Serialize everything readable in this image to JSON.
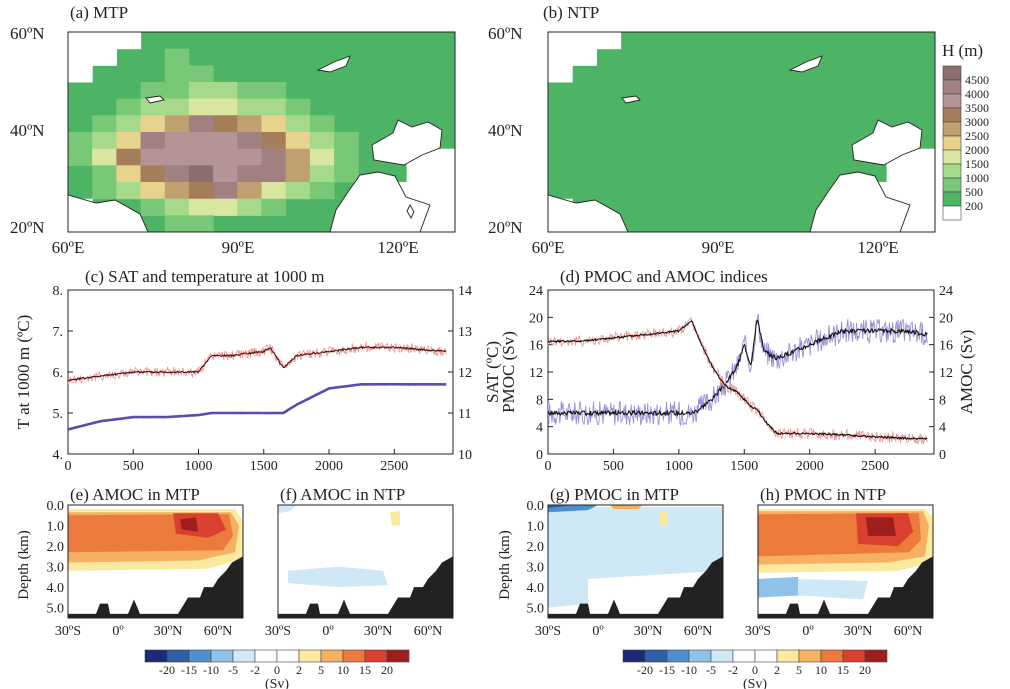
{
  "colors": {
    "blue_series": "#5d4cae",
    "red_series": "#e03a3a",
    "blue_light": "#9b8fd8",
    "red_light": "#f09a9a",
    "land_mask": "#222222"
  },
  "map_panels": [
    {
      "title": "(a) MTP",
      "lat_ticks": [
        "60ºN",
        "40ºN",
        "20ºN"
      ],
      "lon_ticks": [
        "60ºE",
        "90ºE",
        "120ºE"
      ]
    },
    {
      "title": "(b) NTP",
      "lat_ticks": [
        "60ºN",
        "40ºN",
        "20ºN"
      ],
      "lon_ticks": [
        "60ºE",
        "90ºE",
        "120ºE"
      ]
    }
  ],
  "height_colorbar": {
    "title": "H (m)",
    "labels": [
      "4500",
      "4000",
      "3500",
      "3000",
      "2500",
      "2000",
      "1500",
      "1000",
      "500",
      "200"
    ],
    "colors": [
      "#8c6e6e",
      "#a08080",
      "#b49494",
      "#a67d5a",
      "#c0a070",
      "#e8d38c",
      "#d9e6a0",
      "#a6d98c",
      "#78c878",
      "#4cb464",
      "#ffffff"
    ]
  },
  "panel_c": {
    "title": "(c) SAT and temperature at 1000 m",
    "left_label": "T at 1000 m (ºC)",
    "right_label": "SAT (ºC)",
    "left_ticks": [
      "8.",
      "7.",
      "6.",
      "5.",
      "4."
    ],
    "right_ticks": [
      "14",
      "13",
      "12",
      "11",
      "10"
    ],
    "x_ticks": [
      "0",
      "500",
      "1000",
      "1500",
      "2000",
      "2500"
    ]
  },
  "panel_d": {
    "title": "(d) PMOC and AMOC indices",
    "left_label": "PMOC (Sv)",
    "right_label": "AMOC (Sv)",
    "left_ticks": [
      "24",
      "20",
      "16",
      "12",
      "8",
      "4",
      "0"
    ],
    "right_ticks": [
      "24",
      "20",
      "16",
      "12",
      "8",
      "4",
      "0"
    ],
    "x_ticks": [
      "0",
      "500",
      "1000",
      "1500",
      "2000",
      "2500"
    ]
  },
  "section_panels": [
    {
      "title": "(e) AMOC in MTP"
    },
    {
      "title": "(f) AMOC in NTP"
    },
    {
      "title": "(g) PMOC in MTP"
    },
    {
      "title": "(h) PMOC in NTP"
    }
  ],
  "section_axes": {
    "ylabel": "Depth (km)",
    "depth_ticks": [
      "0.0",
      "1.0",
      "2.0",
      "3.0",
      "4.0",
      "5.0"
    ],
    "lat_ticks": [
      "30ºS",
      "0º",
      "30ºN",
      "60ºN"
    ]
  },
  "sv_colorbar": {
    "labels": [
      "-20",
      "-15",
      "-10",
      "-5",
      "-2",
      "0",
      "2",
      "5",
      "10",
      "15",
      "20"
    ],
    "unit": "(Sv)",
    "colors": [
      "#1e2a78",
      "#2f5fa8",
      "#4f8fcf",
      "#8ec2e8",
      "#cfe8f6",
      "#ffffff",
      "#ffffff",
      "#fbe9a0",
      "#f5b062",
      "#ec7a3c",
      "#d94030",
      "#9e1e1e"
    ]
  },
  "chart_data": [
    {
      "type": "line",
      "title": "(c) SAT and temperature at 1000 m",
      "x": [
        0,
        250,
        500,
        750,
        1000,
        1100,
        1250,
        1500,
        1550,
        1650,
        1750,
        2000,
        2250,
        2500,
        2900
      ],
      "series": [
        {
          "name": "T at 1000 m",
          "axis": "left",
          "values": [
            4.6,
            4.8,
            4.9,
            4.9,
            4.95,
            5.0,
            5.0,
            5.0,
            5.0,
            5.0,
            5.2,
            5.6,
            5.7,
            5.7,
            5.7
          ]
        },
        {
          "name": "SAT",
          "axis": "right",
          "values": [
            11.8,
            11.9,
            12.0,
            12.0,
            12.0,
            12.4,
            12.4,
            12.5,
            12.6,
            12.1,
            12.4,
            12.5,
            12.6,
            12.6,
            12.5
          ]
        }
      ],
      "xlim": [
        0,
        2950
      ],
      "ylim_left": [
        4.0,
        8.0
      ],
      "ylim_right": [
        10,
        14
      ]
    },
    {
      "type": "line",
      "title": "(d) PMOC and AMOC indices",
      "x": [
        0,
        250,
        500,
        750,
        1000,
        1100,
        1150,
        1250,
        1350,
        1450,
        1500,
        1550,
        1600,
        1650,
        1750,
        2000,
        2250,
        2500,
        2750,
        2900
      ],
      "series": [
        {
          "name": "PMOC",
          "axis": "left",
          "values": [
            6,
            6,
            6,
            6,
            6,
            6,
            6.5,
            8,
            10,
            13,
            16,
            13,
            20,
            15,
            14,
            16,
            18,
            18,
            18,
            17.5
          ]
        },
        {
          "name": "AMOC",
          "axis": "right",
          "values": [
            16.5,
            16.5,
            17,
            17.5,
            18,
            19.5,
            17,
            13,
            10,
            9,
            8,
            7,
            6.5,
            5,
            3,
            3,
            2.8,
            2.5,
            2.3,
            2.2
          ]
        }
      ],
      "xlim": [
        0,
        2950
      ],
      "ylim_left": [
        0,
        24
      ],
      "ylim_right": [
        0,
        24
      ]
    }
  ]
}
